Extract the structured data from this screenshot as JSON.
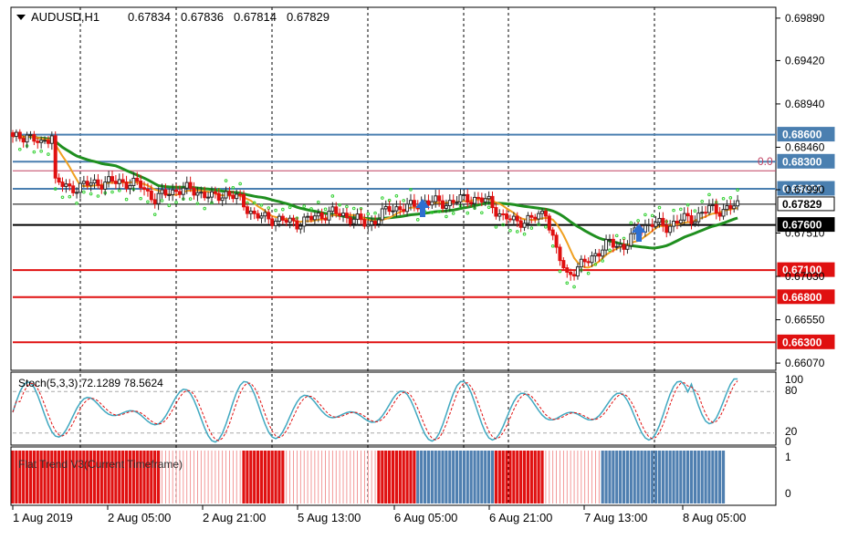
{
  "symbol": "AUDUSD,H1",
  "ohlc": {
    "open": "0.67834",
    "high": "0.67836",
    "low": "0.67814",
    "close": "0.67829"
  },
  "price_axis": {
    "ticks": [
      "0.69890",
      "0.69420",
      "0.68940",
      "0.68460",
      "0.67990",
      "0.67510",
      "0.67030",
      "0.66550",
      "0.66070"
    ],
    "ylim": [
      0.6599,
      0.7001
    ]
  },
  "levels": [
    {
      "price": 0.686,
      "label": "0.68600",
      "kind": "steel"
    },
    {
      "price": 0.683,
      "label": "0.68300",
      "kind": "steel"
    },
    {
      "price": 0.68,
      "label": "0.68000",
      "kind": "steel"
    },
    {
      "price": 0.67829,
      "label": "0.67829",
      "kind": "current"
    },
    {
      "price": 0.676,
      "label": "0.67600",
      "kind": "black"
    },
    {
      "price": 0.671,
      "label": "0.67100",
      "kind": "red"
    },
    {
      "price": 0.668,
      "label": "0.66800",
      "kind": "red"
    },
    {
      "price": 0.663,
      "label": "0.66300",
      "kind": "red"
    }
  ],
  "fib_label": "0.0",
  "time_axis": [
    "1 Aug 2019",
    "2 Aug 05:00",
    "2 Aug 21:00",
    "5 Aug 13:00",
    "6 Aug 05:00",
    "6 Aug 21:00",
    "7 Aug 13:00",
    "8 Aug 05:00"
  ],
  "stoch": {
    "label": "Stoch(5,3,3) 72.1289 78.5624",
    "ticks": [
      "100",
      "80",
      "20",
      "0"
    ]
  },
  "flat_trend": {
    "label": "Flat Trend V3(Current Timeframe)",
    "ticks": [
      "1",
      "0"
    ]
  },
  "colors": {
    "bull": "#2e6fd1",
    "bear": "#e01010",
    "steel": "#4a7fb0",
    "red_level": "#e01010",
    "ma_green": "#1f8f1f",
    "ma_orange": "#f0a020",
    "psar": "#32d032",
    "stoch_main": "#40a8c0",
    "stoch_signal": "#e01010",
    "ft_red": "#e01010",
    "ft_blue": "#4f7fb0"
  },
  "chart_data": {
    "type": "candlestick",
    "title": "AUDUSD,H1",
    "ylim": [
      0.6599,
      0.7001
    ],
    "approx_close_path": [
      [
        0,
        0.6855
      ],
      [
        4,
        0.686
      ],
      [
        8,
        0.6848
      ],
      [
        11,
        0.6862
      ],
      [
        12,
        0.6808
      ],
      [
        16,
        0.68
      ],
      [
        22,
        0.6806
      ],
      [
        30,
        0.6808
      ],
      [
        36,
        0.6804
      ],
      [
        40,
        0.6788
      ],
      [
        44,
        0.6797
      ],
      [
        50,
        0.68
      ],
      [
        56,
        0.679
      ],
      [
        60,
        0.6795
      ],
      [
        64,
        0.6788
      ],
      [
        68,
        0.677
      ],
      [
        74,
        0.6766
      ],
      [
        80,
        0.6762
      ],
      [
        86,
        0.677
      ],
      [
        90,
        0.6774
      ],
      [
        96,
        0.6767
      ],
      [
        100,
        0.676
      ],
      [
        106,
        0.6778
      ],
      [
        112,
        0.678
      ],
      [
        116,
        0.6786
      ],
      [
        122,
        0.6784
      ],
      [
        128,
        0.679
      ],
      [
        134,
        0.6786
      ],
      [
        138,
        0.6768
      ],
      [
        142,
        0.6764
      ],
      [
        146,
        0.6766
      ],
      [
        150,
        0.6775
      ],
      [
        153,
        0.673
      ],
      [
        156,
        0.6705
      ],
      [
        160,
        0.6715
      ],
      [
        164,
        0.6728
      ],
      [
        168,
        0.674
      ],
      [
        172,
        0.6736
      ],
      [
        176,
        0.6755
      ],
      [
        180,
        0.6762
      ],
      [
        184,
        0.6758
      ],
      [
        188,
        0.6766
      ],
      [
        192,
        0.6768
      ],
      [
        196,
        0.6778
      ],
      [
        200,
        0.6776
      ],
      [
        204,
        0.6782
      ]
    ]
  }
}
